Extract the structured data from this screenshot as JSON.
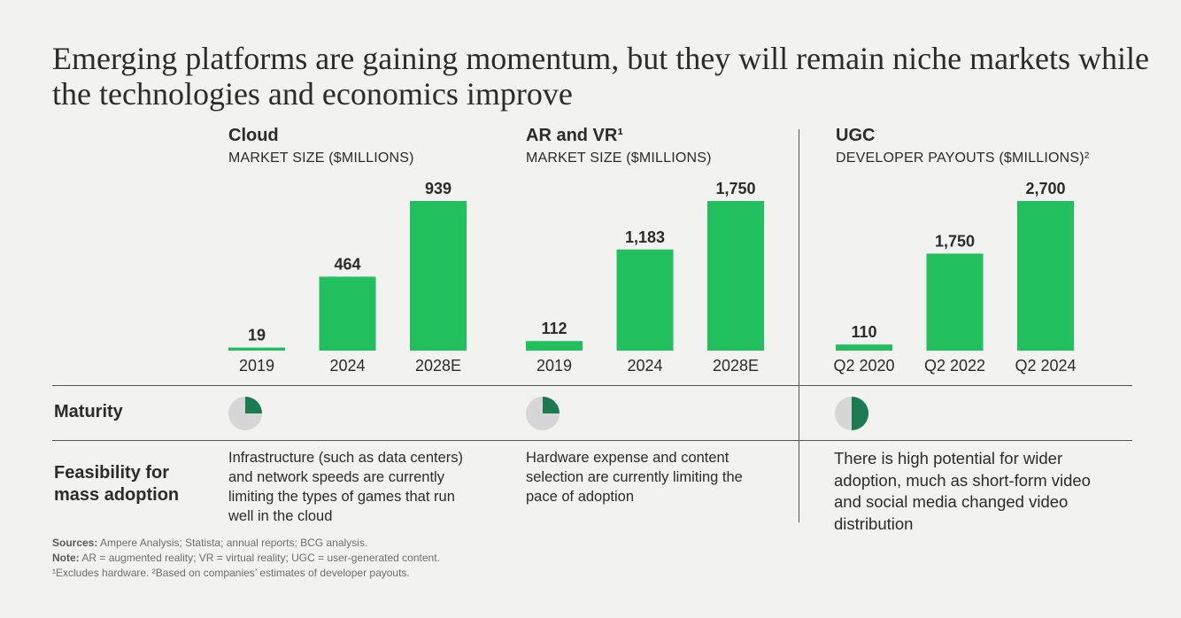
{
  "title": "Emerging platforms are gaining momentum, but they will remain niche markets while the technologies and economics improve",
  "colors": {
    "bar": "#22bf5f",
    "pie_fill": "#1b7a52",
    "pie_bg": "#d6d6d6",
    "text": "#2b2b2b"
  },
  "chart_data": [
    {
      "type": "bar",
      "title": "Cloud",
      "subtitle": "MARKET SIZE ($MILLIONS)",
      "categories": [
        "2019",
        "2024",
        "2028E"
      ],
      "values": [
        19,
        464,
        939
      ],
      "labels": [
        "19",
        "464",
        "939"
      ]
    },
    {
      "type": "bar",
      "title": "AR and VR¹",
      "subtitle": "MARKET SIZE ($MILLIONS)",
      "categories": [
        "2019",
        "2024",
        "2028E"
      ],
      "values": [
        112,
        1183,
        1750
      ],
      "labels": [
        "112",
        "1,183",
        "1,750"
      ]
    },
    {
      "type": "bar",
      "title": "UGC",
      "subtitle": "DEVELOPER PAYOUTS ($MILLIONS)²",
      "categories": [
        "Q2 2020",
        "Q2 2022",
        "Q2 2024"
      ],
      "values": [
        110,
        1750,
        2700
      ],
      "labels": [
        "110",
        "1,750",
        "2,700"
      ]
    }
  ],
  "rows": {
    "maturity_label": "Maturity",
    "feasibility_label": "Feasibility for mass adoption"
  },
  "maturity_fraction": [
    0.25,
    0.25,
    0.5
  ],
  "feasibility": [
    "Infrastructure (such as data centers) and network speeds are currently limiting the types of games that run well in the cloud",
    "Hardware expense and content selection are currently limiting the pace of adoption",
    "There is high potential for wider adoption, much as short-form video and social media changed video distribution"
  ],
  "notes": {
    "sources_label": "Sources:",
    "sources_text": " Ampere Analysis; Statista; annual reports; BCG analysis.",
    "note_label": "Note:",
    "note_text": " AR = augmented reality; VR = virtual reality; UGC = user-generated content.",
    "footnotes": "¹Excludes hardware. ²Based on companies’ estimates of developer payouts."
  }
}
